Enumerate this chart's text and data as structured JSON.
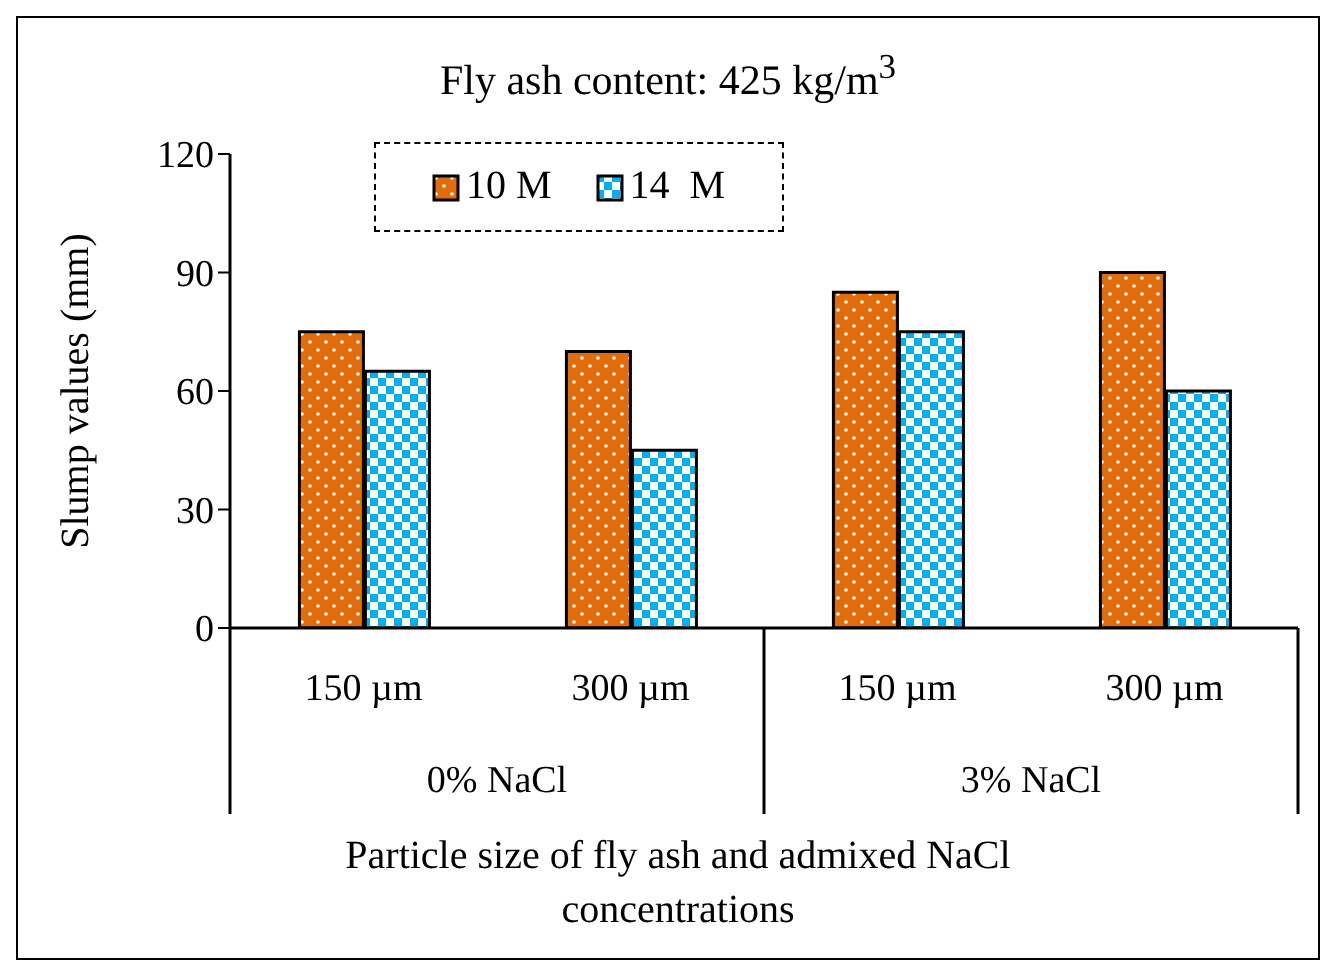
{
  "chart_data": {
    "type": "bar",
    "title": "Fly ash content: 425 kg/m$^{3}$",
    "categories": [
      "150 µm",
      "300 µm",
      "150 µm",
      "300 µm"
    ],
    "annotations": [
      "0% NaCl",
      "3% NaCl"
    ],
    "xlabel": "Particle size of fly ash and admixed NaCl concentrations",
    "ylabel": "Slump values (mm)",
    "series": [
      {
        "name": "10 M",
        "color": "#e36c0a",
        "values": [
          75,
          70,
          85,
          90
        ]
      },
      {
        "name": "14  M",
        "color": "#00b0f0",
        "values": [
          65,
          45,
          75,
          60
        ]
      }
    ],
    "ylim": [
      0,
      120
    ],
    "yticks": [
      0,
      30,
      60,
      90,
      120
    ],
    "grid": false,
    "legend": "top"
  }
}
